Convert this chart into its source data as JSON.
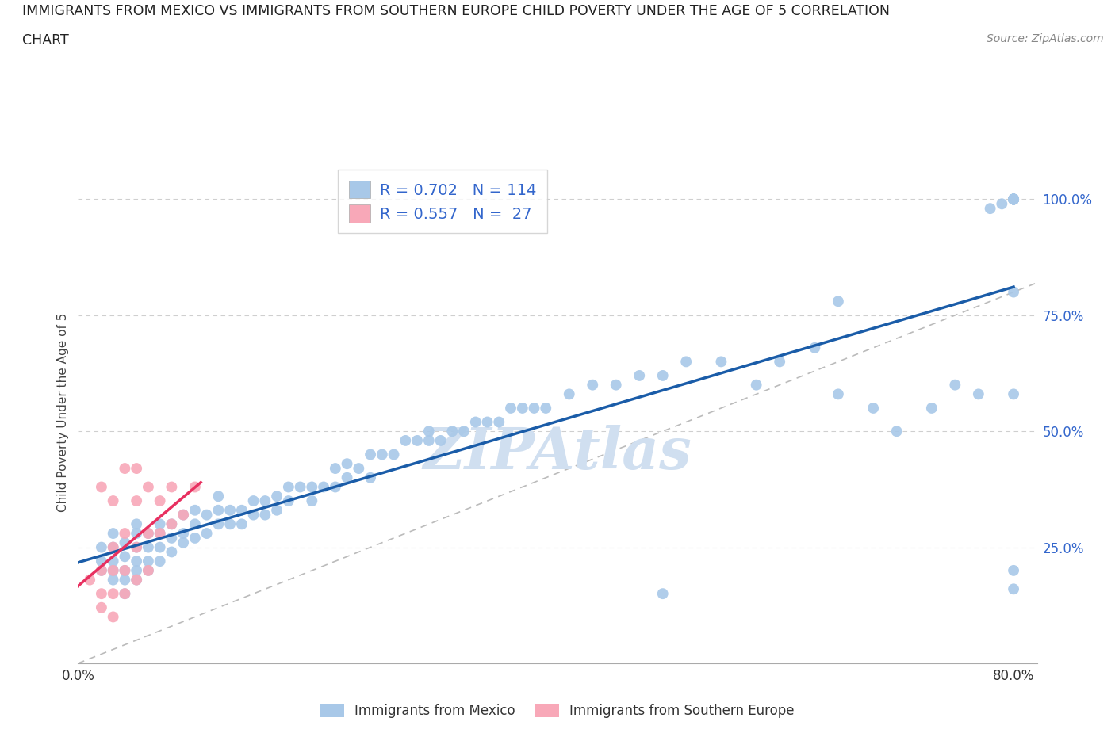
{
  "title_line1": "IMMIGRANTS FROM MEXICO VS IMMIGRANTS FROM SOUTHERN EUROPE CHILD POVERTY UNDER THE AGE OF 5 CORRELATION",
  "title_line2": "CHART",
  "source_text": "Source: ZipAtlas.com",
  "ylabel": "Child Poverty Under the Age of 5",
  "xlim": [
    0.0,
    0.82
  ],
  "ylim": [
    0.0,
    1.08
  ],
  "mexico_R": 0.702,
  "mexico_N": 114,
  "s_europe_R": 0.557,
  "s_europe_N": 27,
  "mexico_color": "#a8c8e8",
  "mexico_line_color": "#1a5ca8",
  "s_europe_color": "#f8a8b8",
  "s_europe_line_color": "#e83060",
  "tick_color": "#3366cc",
  "axis_color": "#aaaaaa",
  "grid_color": "#bbbbbb",
  "background_color": "#ffffff",
  "watermark_color": "#d0dff0",
  "mexico_x": [
    0.02,
    0.02,
    0.02,
    0.03,
    0.03,
    0.03,
    0.03,
    0.03,
    0.04,
    0.04,
    0.04,
    0.04,
    0.04,
    0.05,
    0.05,
    0.05,
    0.05,
    0.05,
    0.05,
    0.06,
    0.06,
    0.06,
    0.06,
    0.07,
    0.07,
    0.07,
    0.07,
    0.08,
    0.08,
    0.08,
    0.09,
    0.09,
    0.09,
    0.1,
    0.1,
    0.1,
    0.11,
    0.11,
    0.12,
    0.12,
    0.12,
    0.13,
    0.13,
    0.14,
    0.14,
    0.15,
    0.15,
    0.16,
    0.16,
    0.17,
    0.17,
    0.18,
    0.18,
    0.19,
    0.2,
    0.2,
    0.21,
    0.22,
    0.22,
    0.23,
    0.23,
    0.24,
    0.25,
    0.25,
    0.26,
    0.27,
    0.28,
    0.29,
    0.3,
    0.3,
    0.31,
    0.32,
    0.33,
    0.34,
    0.35,
    0.36,
    0.37,
    0.38,
    0.39,
    0.4,
    0.42,
    0.44,
    0.46,
    0.48,
    0.5,
    0.52,
    0.55,
    0.58,
    0.6,
    0.63,
    0.65,
    0.68,
    0.7,
    0.73,
    0.75,
    0.77,
    0.78,
    0.79,
    0.8,
    0.8,
    0.8,
    0.8,
    0.8,
    0.8,
    0.8,
    0.8,
    0.8,
    0.8,
    0.8,
    0.8,
    0.8,
    0.8,
    0.65,
    0.5
  ],
  "mexico_y": [
    0.2,
    0.22,
    0.25,
    0.18,
    0.2,
    0.22,
    0.25,
    0.28,
    0.15,
    0.18,
    0.2,
    0.23,
    0.26,
    0.18,
    0.2,
    0.22,
    0.25,
    0.28,
    0.3,
    0.2,
    0.22,
    0.25,
    0.28,
    0.22,
    0.25,
    0.28,
    0.3,
    0.24,
    0.27,
    0.3,
    0.26,
    0.28,
    0.32,
    0.27,
    0.3,
    0.33,
    0.28,
    0.32,
    0.3,
    0.33,
    0.36,
    0.3,
    0.33,
    0.3,
    0.33,
    0.32,
    0.35,
    0.32,
    0.35,
    0.33,
    0.36,
    0.35,
    0.38,
    0.38,
    0.35,
    0.38,
    0.38,
    0.38,
    0.42,
    0.4,
    0.43,
    0.42,
    0.4,
    0.45,
    0.45,
    0.45,
    0.48,
    0.48,
    0.48,
    0.5,
    0.48,
    0.5,
    0.5,
    0.52,
    0.52,
    0.52,
    0.55,
    0.55,
    0.55,
    0.55,
    0.58,
    0.6,
    0.6,
    0.62,
    0.62,
    0.65,
    0.65,
    0.6,
    0.65,
    0.68,
    0.58,
    0.55,
    0.5,
    0.55,
    0.6,
    0.58,
    0.98,
    0.99,
    1.0,
    1.0,
    1.0,
    1.0,
    1.0,
    1.0,
    1.0,
    1.0,
    1.0,
    1.0,
    0.8,
    0.16,
    0.2,
    0.58,
    0.78,
    0.15
  ],
  "s_europe_x": [
    0.01,
    0.02,
    0.02,
    0.02,
    0.02,
    0.03,
    0.03,
    0.03,
    0.03,
    0.03,
    0.04,
    0.04,
    0.04,
    0.04,
    0.05,
    0.05,
    0.05,
    0.05,
    0.06,
    0.06,
    0.06,
    0.07,
    0.07,
    0.08,
    0.08,
    0.09,
    0.1
  ],
  "s_europe_y": [
    0.18,
    0.12,
    0.15,
    0.2,
    0.38,
    0.1,
    0.15,
    0.2,
    0.25,
    0.35,
    0.15,
    0.2,
    0.28,
    0.42,
    0.18,
    0.25,
    0.35,
    0.42,
    0.2,
    0.28,
    0.38,
    0.28,
    0.35,
    0.3,
    0.38,
    0.32,
    0.38
  ]
}
